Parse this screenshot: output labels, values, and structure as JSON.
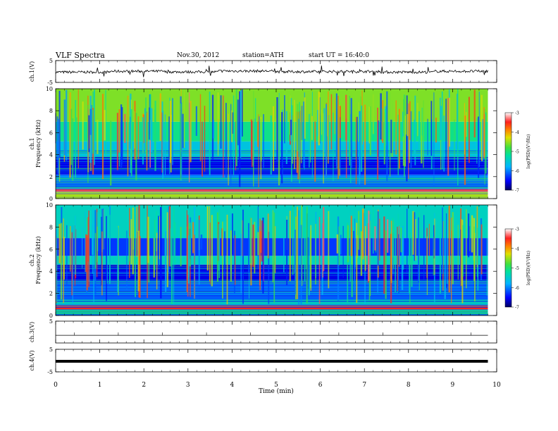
{
  "header": {
    "title": "VLF  Spectra",
    "date": "Nov.30, 2012",
    "station": "station=ATH",
    "start": "start  UT  =   16:40:0"
  },
  "chart_data": [
    {
      "type": "line",
      "panel": "ch1-waveform",
      "ylabel": "ch.1(V)",
      "ylim": [
        -5,
        5
      ],
      "yticks": [
        "5",
        "-5"
      ],
      "xlim": [
        0,
        10
      ],
      "series": [
        {
          "values": [
            -0.3,
            0.1,
            -0.2,
            0.2,
            -0.1,
            0.0,
            -0.3,
            0.1
          ]
        }
      ],
      "color": "#000000"
    },
    {
      "type": "heatmap",
      "panel": "ch1-spectrogram",
      "ylabel": "ch.1\nFrequency  (kHz)",
      "ylim": [
        0,
        10
      ],
      "yticks": [
        "0",
        "2",
        "4",
        "6",
        "8",
        "10"
      ],
      "xlim": [
        0,
        9.8
      ],
      "colorbar": {
        "label": "log(PSD)(V²/Hz)",
        "range": [
          -7,
          -3
        ],
        "ticks": [
          "-3",
          "-4",
          "-5",
          "-6",
          "-7"
        ]
      },
      "bands": [
        {
          "from": 0.0,
          "to": 0.6,
          "level": -4.4
        },
        {
          "from": 0.6,
          "to": 0.9,
          "level": -3.4
        },
        {
          "from": 0.9,
          "to": 2.2,
          "level": -6.1
        },
        {
          "from": 2.2,
          "to": 3.8,
          "level": -6.6
        },
        {
          "from": 3.8,
          "to": 5.2,
          "level": -5.6
        },
        {
          "from": 5.2,
          "to": 7.0,
          "level": -5.1
        },
        {
          "from": 7.0,
          "to": 10.0,
          "level": -4.6
        }
      ]
    },
    {
      "type": "heatmap",
      "panel": "ch2-spectrogram",
      "ylabel": "ch.2\nFrequency  (kHz)",
      "ylim": [
        0,
        10
      ],
      "yticks": [
        "0",
        "2",
        "4",
        "6",
        "8",
        "10"
      ],
      "xlim": [
        0,
        9.8
      ],
      "colorbar": {
        "label": "log(PSD)(V²/Hz)",
        "range": [
          -7,
          -3
        ],
        "ticks": [
          "-3",
          "-4",
          "-5",
          "-6",
          "-7"
        ]
      },
      "bands": [
        {
          "from": 0.0,
          "to": 0.5,
          "level": -5.0
        },
        {
          "from": 0.5,
          "to": 0.9,
          "level": -3.5
        },
        {
          "from": 0.9,
          "to": 1.4,
          "level": -5.3
        },
        {
          "from": 1.4,
          "to": 3.0,
          "level": -6.2
        },
        {
          "from": 3.0,
          "to": 4.6,
          "level": -6.6
        },
        {
          "from": 4.6,
          "to": 5.4,
          "level": -5.4
        },
        {
          "from": 5.4,
          "to": 7.0,
          "level": -6.3
        },
        {
          "from": 7.0,
          "to": 10.0,
          "level": -5.4
        }
      ]
    },
    {
      "type": "line",
      "panel": "ch3-waveform",
      "ylabel": "ch.3(V)",
      "ylim": [
        -5,
        5
      ],
      "yticks": [
        "5"
      ],
      "xlim": [
        0,
        10
      ],
      "series": [
        {
          "values": [
            -1.5,
            -1.5,
            -1.5,
            -1.5
          ]
        }
      ],
      "color": "#000000"
    },
    {
      "type": "line",
      "panel": "ch4-waveform",
      "ylabel": "ch.4(V)",
      "ylim": [
        -5,
        5
      ],
      "yticks": [
        "5",
        "-5"
      ],
      "xlim": [
        0,
        10
      ],
      "series": [
        {
          "values": [
            -0.3,
            -0.3,
            -0.3,
            -0.3
          ]
        }
      ],
      "color": "#000000"
    }
  ],
  "xaxis": {
    "label": "Time  (min)",
    "ticks": [
      "0",
      "1",
      "2",
      "3",
      "4",
      "5",
      "6",
      "7",
      "8",
      "9",
      "10"
    ],
    "range": [
      0,
      10
    ]
  }
}
